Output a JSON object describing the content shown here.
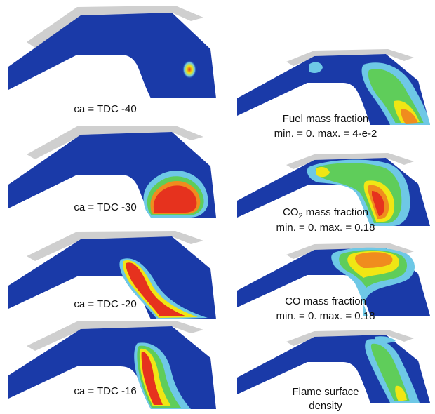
{
  "left_labels": [
    "ca = TDC -40",
    "ca = TDC -30",
    "ca = TDC -20",
    "ca = TDC -16"
  ],
  "right_labels": [
    {
      "line1": "Fuel mass fraction",
      "line2": "min. = 0. max. = 4·e-2"
    },
    {
      "line1_pre": "CO",
      "line1_sub": "2",
      "line1_post": " mass fraction",
      "line2": "min. = 0. max. = 0.18"
    },
    {
      "line1": "CO mass fraction",
      "line2": "min. = 0. max. = 0.18"
    },
    {
      "line1": "Flame surface",
      "line2": "density"
    }
  ],
  "colors": {
    "field_blue": "#1a3aa8",
    "cap_grey": "#cfcfcf",
    "red": "#e6321e",
    "orange": "#f08c1e",
    "yellow": "#f0e614",
    "green": "#5fcd5a",
    "cyan": "#6ec8e6"
  }
}
